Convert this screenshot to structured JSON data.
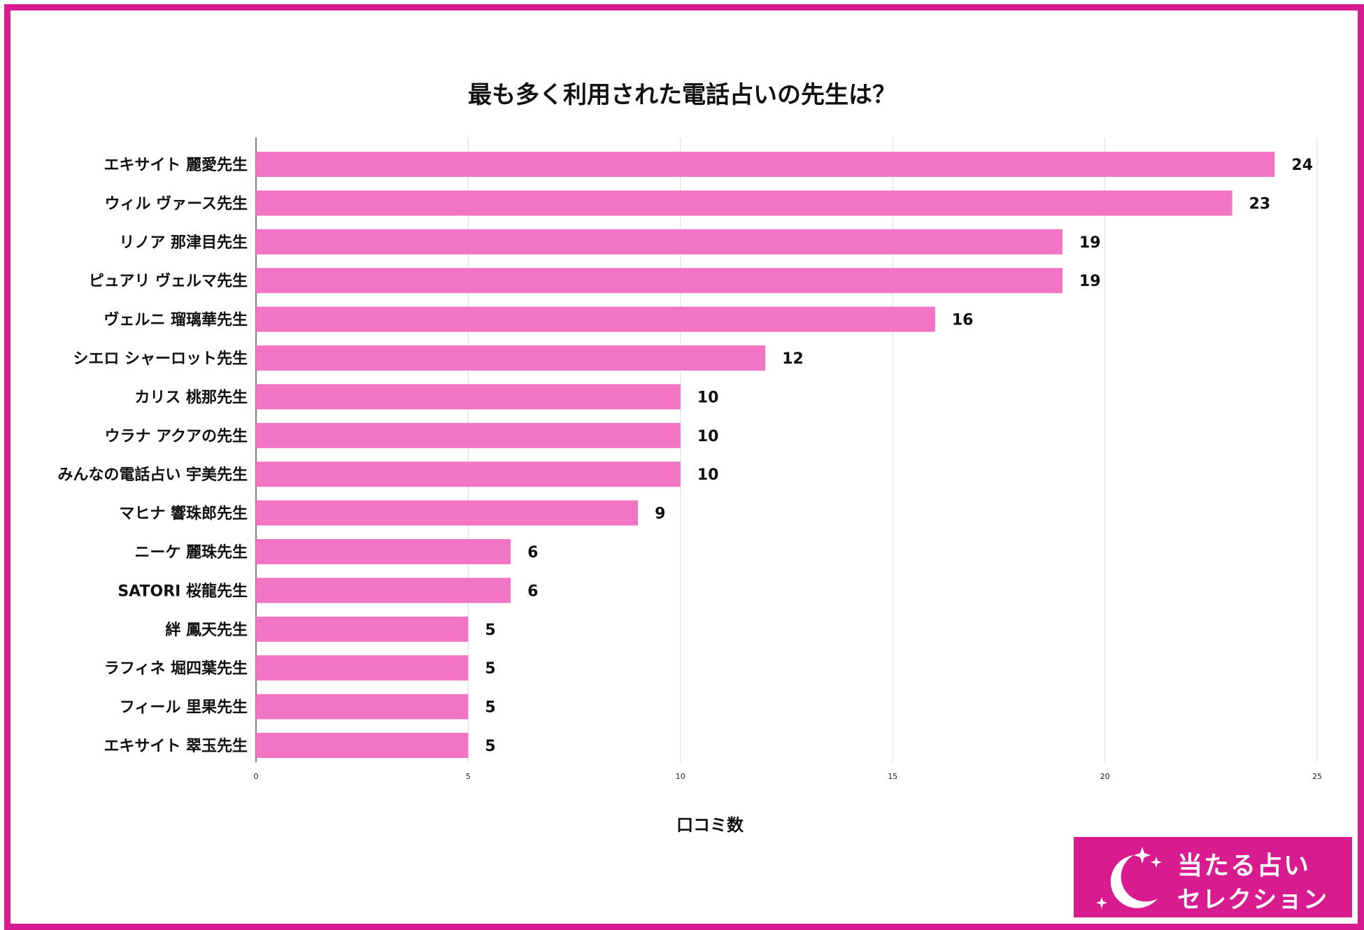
{
  "chart_data": {
    "type": "bar",
    "orientation": "horizontal",
    "title": "最も多く利用された電話占いの先生は？",
    "xlabel": "口コミ数",
    "ylabel": "",
    "xlim": [
      0,
      25
    ],
    "xticks": [
      0,
      5,
      10,
      15,
      20,
      25
    ],
    "grid": true,
    "bar_color": "#f274c4",
    "categories": [
      "エキサイト 麗愛先生",
      "ウィル ヴァース先生",
      "リノア 那津目先生",
      "ピュアリ ヴェルマ先生",
      "ヴェルニ 瑠璃華先生",
      "シエロ シャーロット先生",
      "カリス 桃那先生",
      "ウラナ アクアの先生",
      "みんなの電話占い 宇美先生",
      "マヒナ 響珠郎先生",
      "ニーケ 麗珠先生",
      "SATORI 桜龍先生",
      "絆 鳳天先生",
      "ラフィネ 堀四葉先生",
      "フィール 里果先生",
      "エキサイト 翠玉先生"
    ],
    "values": [
      24,
      23,
      19,
      19,
      16,
      12,
      10,
      10,
      10,
      9,
      6,
      6,
      5,
      5,
      5,
      5
    ]
  },
  "logo": {
    "line1": "当たる占い",
    "line2": "セレクション",
    "icon": "crescent-moon-stars-icon",
    "color": "#d81b8f"
  },
  "colors": {
    "frame": "#d81b8f",
    "bar": "#f274c4",
    "grid": "#d9d9d9"
  }
}
